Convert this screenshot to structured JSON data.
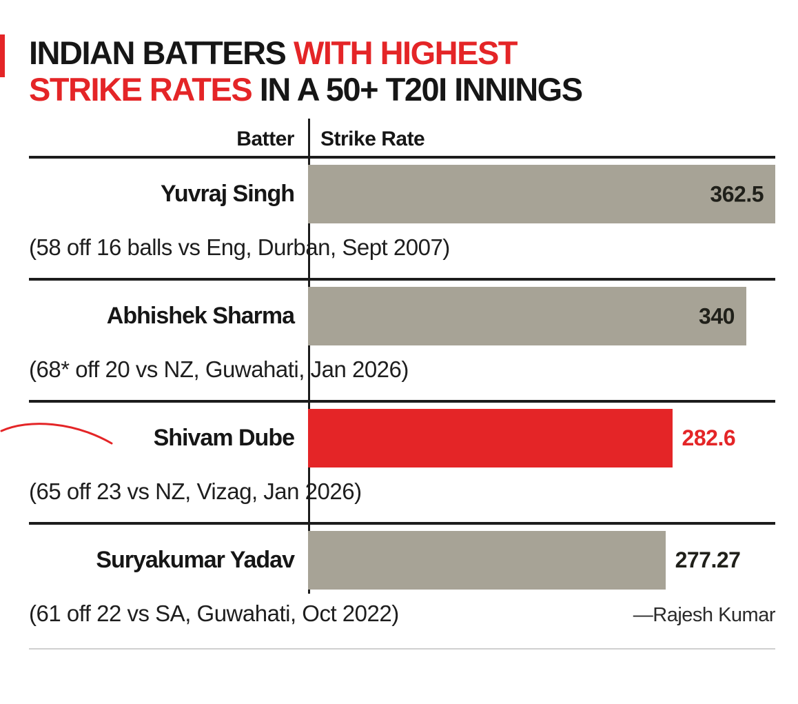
{
  "title": {
    "line1_black": "INDIAN BATTERS ",
    "line1_red": "WITH HIGHEST",
    "line2_red": "STRIKE RATES",
    "line2_black": " IN A 50+ T20I INNINGS"
  },
  "columns": {
    "batter": "Batter",
    "strike_rate": "Strike Rate"
  },
  "chart_data": {
    "type": "bar",
    "orientation": "horizontal",
    "title": "INDIAN BATTERS WITH HIGHEST STRIKE RATES IN A 50+ T20I INNINGS",
    "categories": [
      "Yuvraj Singh",
      "Abhishek Sharma",
      "Shivam Dube",
      "Suryakumar Yadav"
    ],
    "values": [
      362.5,
      340,
      282.6,
      277.27
    ],
    "details": [
      "(58 off 16 balls vs Eng, Durban, Sept 2007)",
      "(68* off 20 vs NZ, Guwahati, Jan 2026)",
      "(65 off 23 vs NZ, Vizag, Jan 2026)",
      "(61 off 22 vs SA, Guwahati, Oct 2022)"
    ],
    "xlim": [
      0,
      362.5
    ],
    "highlight_index": 2,
    "bar_color": "#a7a396",
    "highlight_color": "#e42527",
    "legend": "none",
    "grid": "off"
  },
  "credit": "—Rajesh Kumar",
  "colors": {
    "red": "#e42527",
    "bar": "#a7a396",
    "text": "#161616",
    "rule_dark": "#1c1c1c",
    "rule_light": "#cfcfcf"
  }
}
